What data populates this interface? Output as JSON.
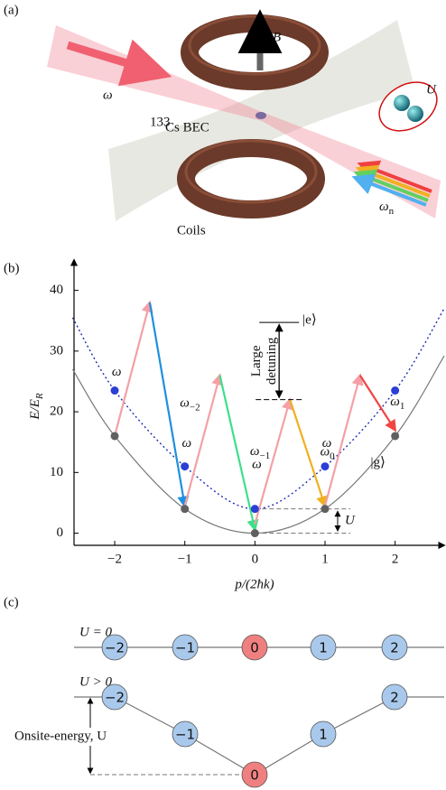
{
  "panel_a": {
    "label": "(a)",
    "omega": "ω",
    "field": "B",
    "interaction": "U",
    "bec_sup": "133",
    "bec": "Cs BEC",
    "coils": "Coils",
    "omega_n": {
      "base": "ω",
      "sub": "n"
    }
  },
  "panel_b": {
    "label": "(b)",
    "chart_data": {
      "type": "line",
      "x_label": "p/(2ħk)",
      "y_label": {
        "base": "E/E",
        "sub": "R"
      },
      "xlim": [
        -2.58,
        2.7
      ],
      "ylim": [
        -2,
        45
      ],
      "xticks": [
        {
          "value": -2,
          "label": "−2"
        },
        {
          "value": -1,
          "label": "−1"
        },
        0,
        1,
        2
      ],
      "yticks": [
        0,
        10,
        20,
        30,
        40
      ],
      "series": [
        {
          "color": "#777777",
          "dash": false,
          "x": [
            -2.6,
            -2,
            -1,
            0,
            1,
            2,
            2.7
          ],
          "values": [
            27,
            16,
            4,
            0,
            4,
            16,
            29.2
          ]
        },
        {
          "color": "#1f2fb0",
          "dash": true,
          "x": [
            -2.6,
            -2,
            -1,
            0,
            1,
            2,
            2.7
          ],
          "values": [
            35.5,
            23.5,
            11,
            4,
            11,
            23.5,
            37
          ]
        }
      ],
      "points": [
        {
          "color": "#606060",
          "x": [
            -2,
            -1,
            0,
            1,
            2
          ],
          "values": [
            16,
            4,
            0,
            4,
            16
          ]
        },
        {
          "color": "#2b3fd6",
          "x": [
            -2,
            -1,
            0,
            1,
            2
          ],
          "values": [
            23.5,
            11,
            4,
            11,
            23.5
          ]
        }
      ],
      "arrows": [
        {
          "color": "#f4a0a6",
          "x": [
            -2,
            -1.5
          ],
          "values": [
            16,
            38
          ],
          "label": {
            "base": "ω",
            "sub": null
          }
        },
        {
          "color": "#1e90e0",
          "x": [
            -1.5,
            -1
          ],
          "values": [
            38,
            4.5
          ],
          "label": {
            "base": "ω",
            "sub": "−2"
          }
        },
        {
          "color": "#f4a0a6",
          "x": [
            -1,
            -0.5
          ],
          "values": [
            4.5,
            26
          ],
          "label": {
            "base": "ω",
            "sub": null
          }
        },
        {
          "color": "#3de08a",
          "x": [
            -0.5,
            0
          ],
          "values": [
            26,
            0.6
          ],
          "label": {
            "base": "ω",
            "sub": "−1"
          }
        },
        {
          "color": "#f4a0a6",
          "x": [
            0,
            0.5
          ],
          "values": [
            1.5,
            22
          ],
          "label": {
            "base": "ω",
            "sub": null
          }
        },
        {
          "color": "#f0b020",
          "x": [
            0.5,
            1
          ],
          "values": [
            22,
            4.5
          ],
          "label": {
            "base": "ω",
            "sub": "0"
          }
        },
        {
          "color": "#f4a0a6",
          "x": [
            1,
            1.5
          ],
          "values": [
            4.5,
            26
          ],
          "label": {
            "base": "ω",
            "sub": null
          }
        },
        {
          "color": "#f04545",
          "x": [
            1.5,
            2
          ],
          "values": [
            26,
            17
          ],
          "label": {
            "base": "ω",
            "sub": "1"
          }
        }
      ],
      "excited_state": "|e⟩",
      "ground_state": "|g⟩",
      "detuning": [
        "Large",
        "detuning"
      ],
      "onsite": "U"
    }
  },
  "panel_c": {
    "label": "(c)",
    "rows": [
      {
        "label": "U = 0",
        "nodes": [
          "−2",
          "−1",
          "0",
          "1",
          "2"
        ]
      },
      {
        "label": "U > 0",
        "nodes": [
          "−2",
          "−1",
          "0",
          "1",
          "2"
        ]
      }
    ],
    "onsite": "Onsite-energy, U"
  }
}
